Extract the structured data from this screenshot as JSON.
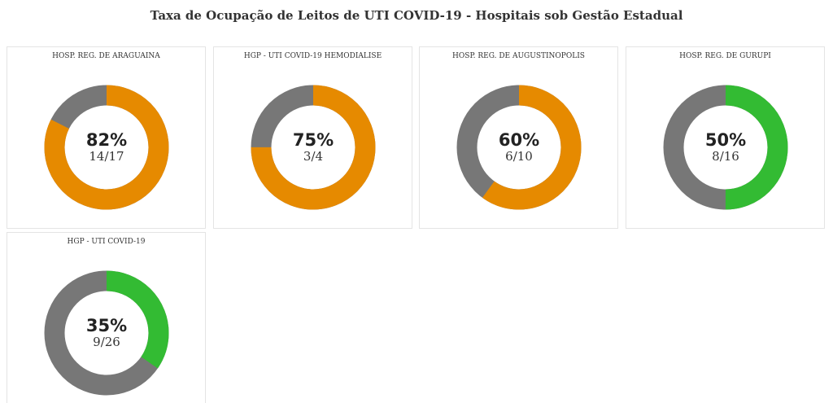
{
  "page": {
    "title": "Taxa de Ocupação de Leitos de UTI COVID-19 - Hospitais sob Gestão Estadual"
  },
  "colors": {
    "orange": "#e68a00",
    "green": "#33bb33",
    "gray": "#777777"
  },
  "chart_data": [
    {
      "type": "pie",
      "title": "HOSP. REG. DE ARAGUAINA",
      "percent_label": "82%",
      "fraction_label": "14/17",
      "occupied": 14,
      "total": 17,
      "color": "orange"
    },
    {
      "type": "pie",
      "title": "HGP - UTI COVID-19 HEMODIALISE",
      "percent_label": "75%",
      "fraction_label": "3/4",
      "occupied": 3,
      "total": 4,
      "color": "orange"
    },
    {
      "type": "pie",
      "title": "HOSP. REG. DE AUGUSTINOPOLIS",
      "percent_label": "60%",
      "fraction_label": "6/10",
      "occupied": 6,
      "total": 10,
      "color": "orange"
    },
    {
      "type": "pie",
      "title": "HOSP. REG. DE GURUPI",
      "percent_label": "50%",
      "fraction_label": "8/16",
      "occupied": 8,
      "total": 16,
      "color": "green"
    },
    {
      "type": "pie",
      "title": "HGP - UTI COVID-19",
      "percent_label": "35%",
      "fraction_label": "9/26",
      "occupied": 9,
      "total": 26,
      "color": "green"
    }
  ]
}
